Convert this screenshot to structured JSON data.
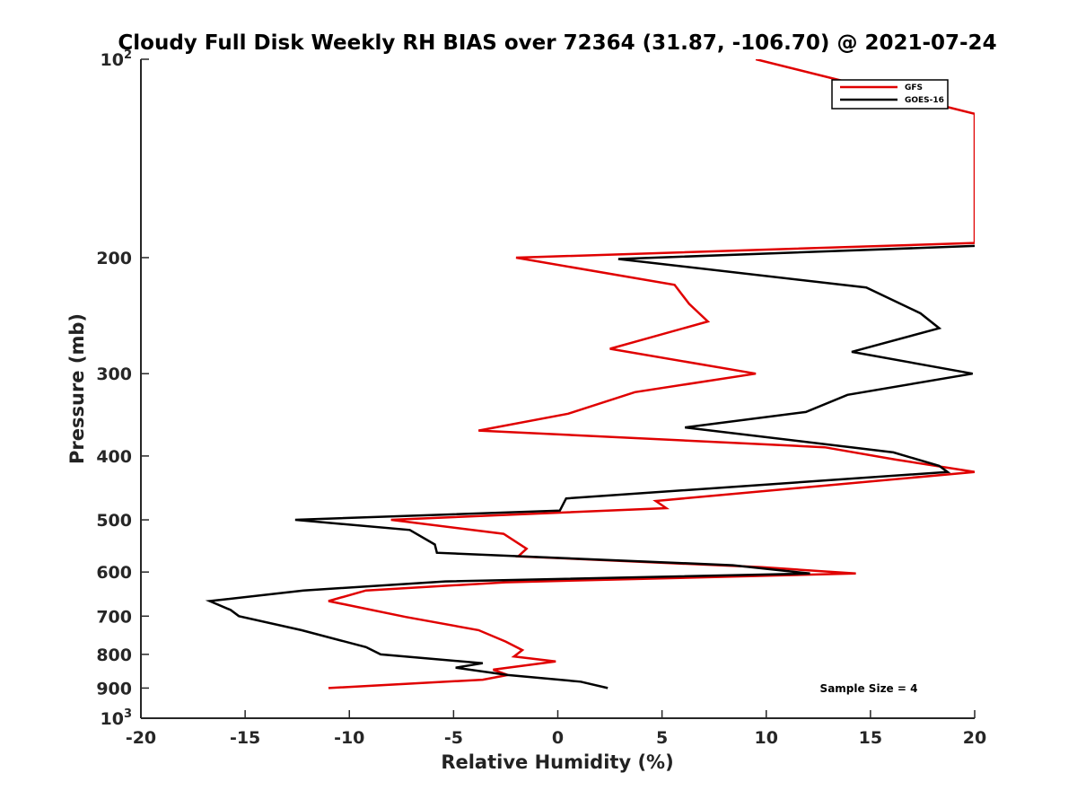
{
  "chart_data": {
    "type": "line",
    "title": "Cloudy Full Disk Weekly RH BIAS over 72364 (31.87, -106.70) @ 2021-07-24",
    "xlabel": "Relative Humidity (%)",
    "ylabel": "Pressure (mb)",
    "xlim": [
      -20,
      20
    ],
    "ylim": [
      100,
      1000
    ],
    "y_scale": "log",
    "y_reversed": true,
    "grid": false,
    "legend_position": "top-right",
    "annotation": "Sample Size = 4",
    "x_ticks": [
      {
        "value": -20,
        "label": "-20"
      },
      {
        "value": -15,
        "label": "-15"
      },
      {
        "value": -10,
        "label": "-10"
      },
      {
        "value": -5,
        "label": "-5"
      },
      {
        "value": 0,
        "label": "0"
      },
      {
        "value": 5,
        "label": "5"
      },
      {
        "value": 10,
        "label": "10"
      },
      {
        "value": 15,
        "label": "15"
      },
      {
        "value": 20,
        "label": "20"
      }
    ],
    "y_ticks": [
      {
        "value": 200,
        "label": "200"
      },
      {
        "value": 300,
        "label": "300"
      },
      {
        "value": 400,
        "label": "400"
      },
      {
        "value": 500,
        "label": "500"
      },
      {
        "value": 600,
        "label": "600"
      },
      {
        "value": 700,
        "label": "700"
      },
      {
        "value": 800,
        "label": "800"
      },
      {
        "value": 900,
        "label": "900"
      }
    ],
    "y_power_ticks": [
      {
        "value": 100,
        "base": "10",
        "exp": "2"
      },
      {
        "value": 1000,
        "base": "10",
        "exp": "3"
      }
    ],
    "series": [
      {
        "name": "GFS",
        "color": "#e00000",
        "points": [
          [
            9.5,
            100
          ],
          [
            20,
            121
          ],
          [
            20,
            190
          ],
          [
            -2,
            200
          ],
          [
            5.6,
            220
          ],
          [
            6.3,
            235
          ],
          [
            7.2,
            250
          ],
          [
            2.5,
            275
          ],
          [
            9.5,
            300
          ],
          [
            3.7,
            320
          ],
          [
            0.5,
            345
          ],
          [
            -3.8,
            366
          ],
          [
            12.8,
            388
          ],
          [
            16.2,
            405
          ],
          [
            20,
            423
          ],
          [
            4.7,
            468
          ],
          [
            5.2,
            480
          ],
          [
            -8,
            500
          ],
          [
            -2.6,
            525
          ],
          [
            -1.5,
            553
          ],
          [
            -1.9,
            568
          ],
          [
            9.8,
            590
          ],
          [
            14.3,
            603
          ],
          [
            -2.5,
            622
          ],
          [
            -9.2,
            640
          ],
          [
            -11,
            664
          ],
          [
            -7.3,
            702
          ],
          [
            -3.8,
            735
          ],
          [
            -2.5,
            765
          ],
          [
            -1.7,
            788
          ],
          [
            -2.1,
            806
          ],
          [
            -0.1,
            820
          ],
          [
            -3.1,
            844
          ],
          [
            -2.4,
            860
          ],
          [
            -3.6,
            874
          ],
          [
            -11,
            900
          ]
        ]
      },
      {
        "name": "GOES-16",
        "color": "#000000",
        "points": [
          [
            20,
            192
          ],
          [
            2.9,
            201
          ],
          [
            14.8,
            222
          ],
          [
            17.4,
            243
          ],
          [
            18.3,
            256
          ],
          [
            14.1,
            278
          ],
          [
            19.9,
            300
          ],
          [
            13.9,
            323
          ],
          [
            11.9,
            343
          ],
          [
            6.1,
            362
          ],
          [
            16.1,
            395
          ],
          [
            18.3,
            414
          ],
          [
            18.7,
            423
          ],
          [
            0.4,
            464
          ],
          [
            0.1,
            484
          ],
          [
            -12.6,
            500
          ],
          [
            -7.1,
            518
          ],
          [
            -5.9,
            545
          ],
          [
            -5.8,
            561
          ],
          [
            8.4,
            586
          ],
          [
            12.1,
            603
          ],
          [
            -5.4,
            620
          ],
          [
            -12.2,
            640
          ],
          [
            -16.7,
            664
          ],
          [
            -15.7,
            685
          ],
          [
            -15.3,
            700
          ],
          [
            -12.3,
            735
          ],
          [
            -9.2,
            780
          ],
          [
            -8.5,
            800
          ],
          [
            -3.6,
            825
          ],
          [
            -4.9,
            838
          ],
          [
            -2.4,
            860
          ],
          [
            1.1,
            880
          ],
          [
            2.4,
            900
          ]
        ]
      }
    ]
  }
}
